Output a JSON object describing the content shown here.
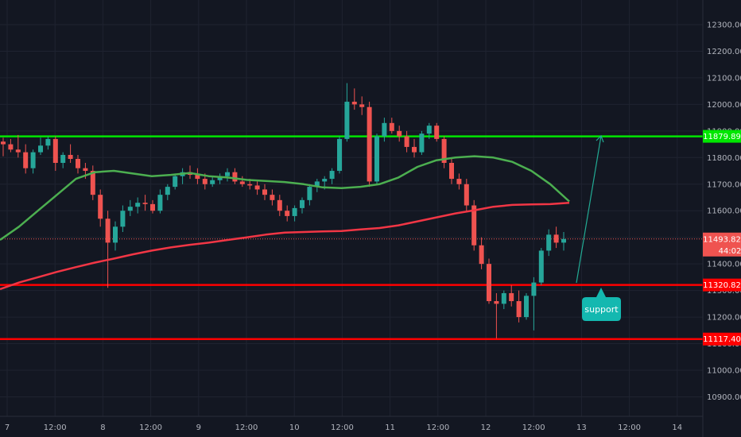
{
  "chart_data": {
    "type": "candlestick",
    "y_range": [
      10800,
      12400
    ],
    "y_ticks": [
      "12300.00",
      "12200.00",
      "12100.00",
      "12000.00",
      "11900.00",
      "11800.00",
      "11700.00",
      "11600.00",
      "11500.00",
      "11400.00",
      "11300.00",
      "11200.00",
      "11100.00",
      "11000.00",
      "10900.00"
    ],
    "x_ticks": [
      "7",
      "12:00",
      "8",
      "12:00",
      "9",
      "12:00",
      "10",
      "12:00",
      "11",
      "12:00",
      "12",
      "12:00",
      "13",
      "12:00",
      "14"
    ],
    "horizontal_levels": [
      {
        "label": "11879.89",
        "value": 11879.89,
        "color": "#00e600"
      },
      {
        "label": "11320.82",
        "value": 11320.82,
        "color": "#ff0000"
      },
      {
        "label": "11117.40",
        "value": 11117.4,
        "color": "#ff0000"
      }
    ],
    "last_price": {
      "label": "11493.82",
      "value": 11493.82,
      "countdown": "44:02",
      "color": "#ef5350"
    },
    "annotation": {
      "text": "support"
    },
    "moving_averages": [
      {
        "color": "#4caf50",
        "values": [
          11490,
          11540,
          11600,
          11660,
          11720,
          11745,
          11750,
          11740,
          11730,
          11735,
          11742,
          11730,
          11725,
          11716,
          11712,
          11708,
          11700,
          11688,
          11685,
          11690,
          11700,
          11725,
          11765,
          11790,
          11800,
          11805,
          11800,
          11784,
          11750,
          11700,
          11635
        ]
      },
      {
        "color": "#f23645",
        "values": [
          11305,
          11330,
          11350,
          11370,
          11388,
          11405,
          11420,
          11436,
          11450,
          11462,
          11472,
          11480,
          11490,
          11500,
          11510,
          11518,
          11520,
          11522,
          11524,
          11530,
          11535,
          11545,
          11560,
          11575,
          11590,
          11602,
          11615,
          11622,
          11624,
          11625,
          11630
        ]
      }
    ],
    "candles": [
      [
        11860,
        11875,
        11805,
        11850
      ],
      [
        11850,
        11870,
        11820,
        11830
      ],
      [
        11830,
        11885,
        11800,
        11820
      ],
      [
        11820,
        11850,
        11740,
        11760
      ],
      [
        11760,
        11830,
        11740,
        11820
      ],
      [
        11820,
        11875,
        11810,
        11845
      ],
      [
        11845,
        11880,
        11830,
        11870
      ],
      [
        11870,
        11880,
        11750,
        11780
      ],
      [
        11780,
        11820,
        11760,
        11810
      ],
      [
        11810,
        11850,
        11780,
        11795
      ],
      [
        11795,
        11810,
        11740,
        11760
      ],
      [
        11760,
        11780,
        11720,
        11750
      ],
      [
        11750,
        11770,
        11640,
        11660
      ],
      [
        11660,
        11680,
        11540,
        11570
      ],
      [
        11570,
        11600,
        11310,
        11480
      ],
      [
        11480,
        11560,
        11450,
        11540
      ],
      [
        11540,
        11620,
        11520,
        11600
      ],
      [
        11600,
        11640,
        11580,
        11615
      ],
      [
        11615,
        11650,
        11590,
        11630
      ],
      [
        11630,
        11660,
        11600,
        11625
      ],
      [
        11625,
        11640,
        11590,
        11600
      ],
      [
        11600,
        11680,
        11590,
        11660
      ],
      [
        11660,
        11700,
        11640,
        11690
      ],
      [
        11690,
        11740,
        11680,
        11730
      ],
      [
        11730,
        11760,
        11700,
        11745
      ],
      [
        11745,
        11770,
        11720,
        11735
      ],
      [
        11735,
        11760,
        11700,
        11720
      ],
      [
        11720,
        11740,
        11680,
        11700
      ],
      [
        11700,
        11730,
        11690,
        11715
      ],
      [
        11715,
        11740,
        11700,
        11730
      ],
      [
        11730,
        11760,
        11710,
        11745
      ],
      [
        11745,
        11760,
        11700,
        11710
      ],
      [
        11710,
        11730,
        11690,
        11700
      ],
      [
        11700,
        11720,
        11680,
        11695
      ],
      [
        11695,
        11710,
        11660,
        11680
      ],
      [
        11680,
        11700,
        11640,
        11660
      ],
      [
        11660,
        11680,
        11620,
        11640
      ],
      [
        11640,
        11660,
        11580,
        11600
      ],
      [
        11600,
        11620,
        11560,
        11580
      ],
      [
        11580,
        11620,
        11560,
        11610
      ],
      [
        11610,
        11650,
        11590,
        11640
      ],
      [
        11640,
        11700,
        11620,
        11690
      ],
      [
        11690,
        11720,
        11670,
        11710
      ],
      [
        11710,
        11730,
        11680,
        11720
      ],
      [
        11720,
        11760,
        11700,
        11750
      ],
      [
        11750,
        11880,
        11740,
        11870
      ],
      [
        11870,
        12080,
        11860,
        12010
      ],
      [
        12010,
        12060,
        11980,
        12000
      ],
      [
        12000,
        12030,
        11960,
        11990
      ],
      [
        11990,
        12010,
        11690,
        11710
      ],
      [
        11710,
        11890,
        11700,
        11880
      ],
      [
        11880,
        11950,
        11860,
        11930
      ],
      [
        11930,
        11950,
        11890,
        11900
      ],
      [
        11900,
        11920,
        11860,
        11880
      ],
      [
        11880,
        11900,
        11820,
        11840
      ],
      [
        11840,
        11870,
        11800,
        11820
      ],
      [
        11820,
        11900,
        11810,
        11890
      ],
      [
        11890,
        11930,
        11870,
        11920
      ],
      [
        11920,
        11930,
        11860,
        11870
      ],
      [
        11870,
        11880,
        11760,
        11780
      ],
      [
        11780,
        11800,
        11700,
        11720
      ],
      [
        11720,
        11740,
        11680,
        11700
      ],
      [
        11700,
        11720,
        11600,
        11620
      ],
      [
        11620,
        11640,
        11450,
        11470
      ],
      [
        11470,
        11500,
        11380,
        11400
      ],
      [
        11400,
        11420,
        11250,
        11260
      ],
      [
        11260,
        11290,
        11120,
        11250
      ],
      [
        11250,
        11300,
        11230,
        11290
      ],
      [
        11290,
        11320,
        11240,
        11260
      ],
      [
        11260,
        11300,
        11180,
        11200
      ],
      [
        11200,
        11290,
        11190,
        11280
      ],
      [
        11280,
        11350,
        11150,
        11330
      ],
      [
        11330,
        11460,
        11320,
        11450
      ],
      [
        11450,
        11530,
        11430,
        11510
      ],
      [
        11510,
        11540,
        11460,
        11480
      ],
      [
        11480,
        11520,
        11450,
        11493.82
      ]
    ]
  }
}
